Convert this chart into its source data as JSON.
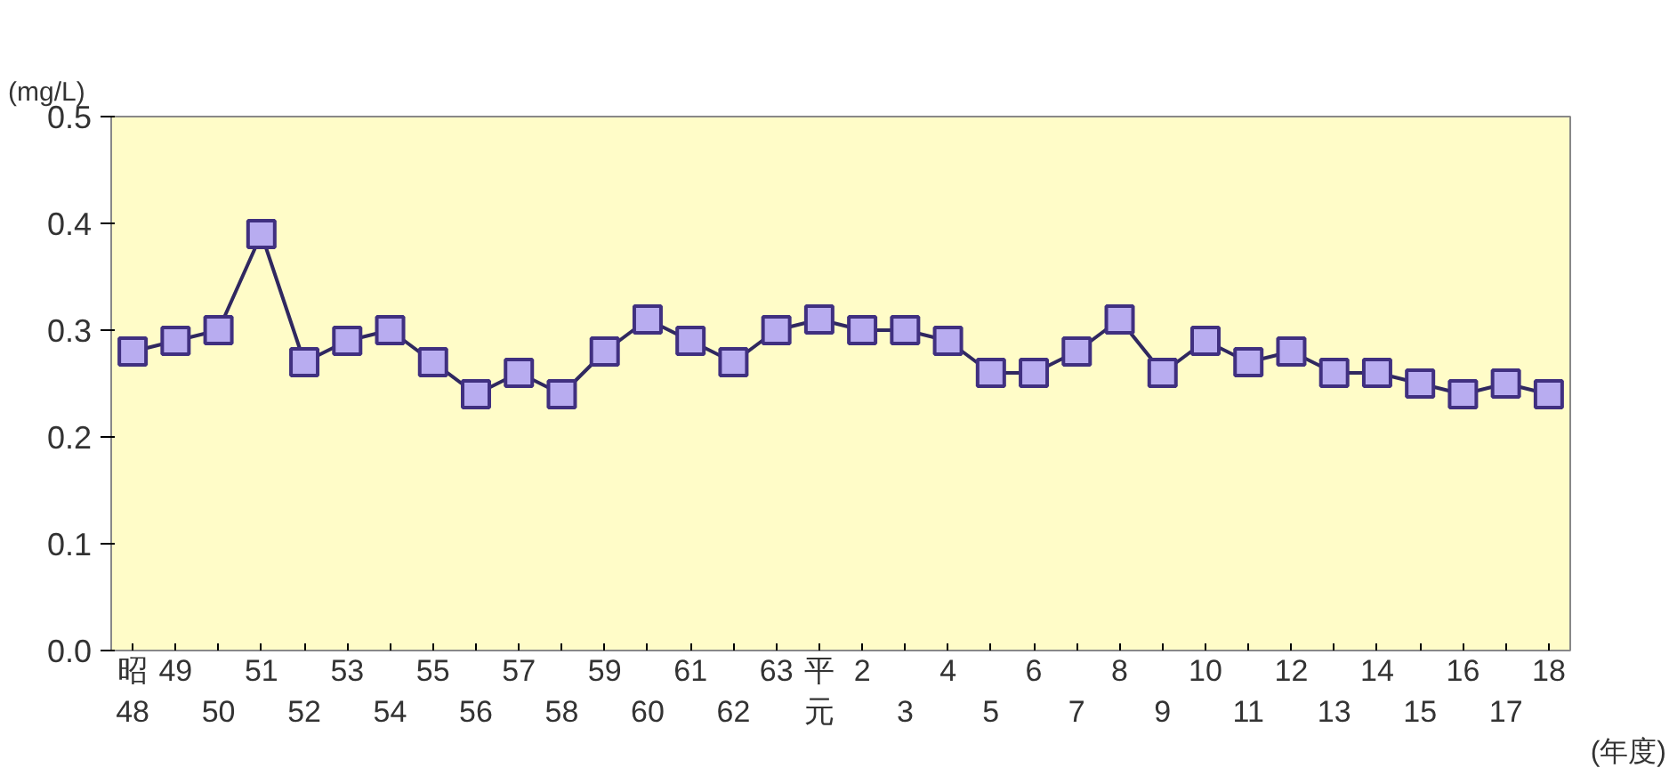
{
  "chart_data": {
    "type": "line",
    "ylabel": "(mg/L)",
    "xlabel": "(年度)",
    "categories": [
      "昭48",
      "49",
      "50",
      "51",
      "52",
      "53",
      "54",
      "55",
      "56",
      "57",
      "58",
      "59",
      "60",
      "61",
      "62",
      "63",
      "平元",
      "2",
      "3",
      "4",
      "5",
      "6",
      "7",
      "8",
      "9",
      "10",
      "11",
      "12",
      "13",
      "14",
      "15",
      "16",
      "17",
      "18"
    ],
    "series": [
      {
        "color": "#b8acf0",
        "values": [
          0.28,
          0.29,
          0.3,
          0.39,
          0.27,
          0.29,
          0.3,
          0.27,
          0.24,
          0.26,
          0.24,
          0.28,
          0.31,
          0.29,
          0.27,
          0.3,
          0.31,
          0.3,
          0.3,
          0.29,
          0.26,
          0.26,
          0.28,
          0.31,
          0.26,
          0.29,
          0.27,
          0.28,
          0.26,
          0.26,
          0.25,
          0.24,
          0.25,
          0.24
        ]
      }
    ],
    "ylim": [
      0,
      0.5
    ],
    "yticks": [
      {
        "value": 0,
        "label": "0.0"
      },
      0.1,
      0.2,
      0.3,
      0.4,
      0.5
    ],
    "marker": "square",
    "grid": false,
    "legend": false
  }
}
